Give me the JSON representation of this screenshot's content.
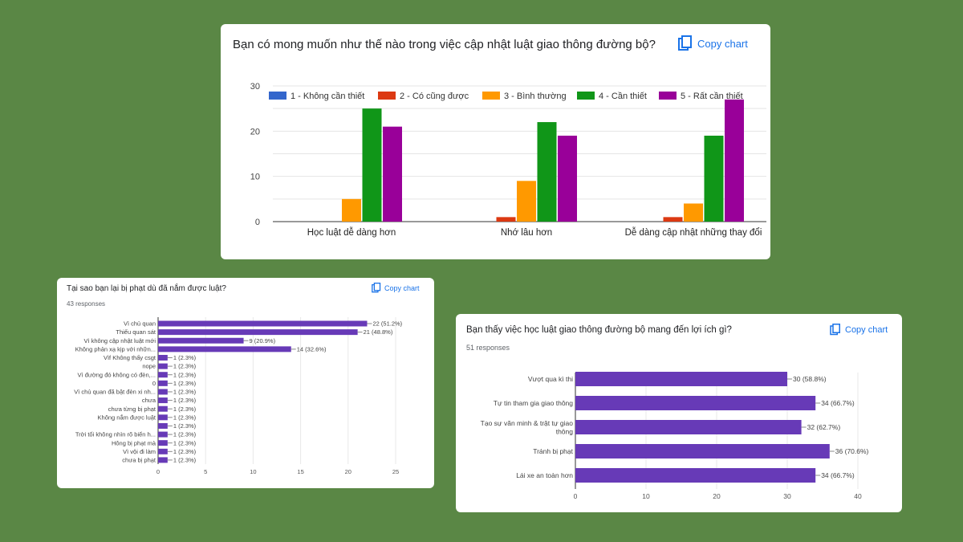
{
  "copy_label": "Copy chart",
  "charts": [
    {
      "title": "Bạn có mong muốn như thế nào trong việc cập nhật luật giao thông đường bộ?",
      "chart_data": {
        "type": "bar",
        "categories": [
          "Học luật dễ dàng hơn",
          "Nhớ lâu hơn",
          "Dễ dàng cập nhật những thay đổi"
        ],
        "series": [
          {
            "name": "1 - Không cần thiết",
            "color": "#3366cc",
            "values": [
              0,
              0,
              0
            ]
          },
          {
            "name": "2 - Có cũng được",
            "color": "#dc3912",
            "values": [
              0,
              1,
              1
            ]
          },
          {
            "name": "3 - Bình thường",
            "color": "#ff9900",
            "values": [
              5,
              9,
              4
            ]
          },
          {
            "name": "4 - Cần thiết",
            "color": "#109618",
            "values": [
              25,
              22,
              19
            ]
          },
          {
            "name": "5 - Rất cần thiết",
            "color": "#990099",
            "values": [
              21,
              19,
              27
            ]
          }
        ],
        "ylim": [
          0,
          30
        ],
        "yticks": [
          0,
          10,
          20,
          30
        ],
        "grid": true,
        "legend": "top"
      }
    },
    {
      "title": "Tại sao bạn lại bị phạt dù đã nắm được luật?",
      "responses": "43 responses",
      "chart_data": {
        "type": "bar",
        "orientation": "horizontal",
        "color": "#673ab7",
        "categories": [
          "Vì chủ quan",
          "Thiếu quan sát",
          "Vì không cập nhật luật mới",
          "Không phản xạ kịp với nhữn...",
          "Vìf Không thấy csgt",
          "nope",
          "Vì đường đó không có đèn,...",
          "0",
          "Vì chủ quan đã bật đèn xi nh...",
          "chưa",
          "chưa từng bị phạt",
          "Không nắm được luật",
          "",
          "Trời tối không nhìn rõ biển h...",
          "Hông bị phạt mà",
          "Vì vội đi làm",
          "chưa bị phạt"
        ],
        "values": [
          22,
          21,
          9,
          14,
          1,
          1,
          1,
          1,
          1,
          1,
          1,
          1,
          1,
          1,
          1,
          1,
          1
        ],
        "data_labels": [
          "22 (51.2%)",
          "21 (48.8%)",
          "9 (20.9%)",
          "14 (32.6%)",
          "1 (2.3%)",
          "1 (2.3%)",
          "1 (2.3%)",
          "1 (2.3%)",
          "1 (2.3%)",
          "1 (2.3%)",
          "1 (2.3%)",
          "1 (2.3%)",
          "1 (2.3%)",
          "1 (2.3%)",
          "1 (2.3%)",
          "1 (2.3%)",
          "1 (2.3%)"
        ],
        "xlim": [
          0,
          25
        ],
        "xticks": [
          0,
          5,
          10,
          15,
          20,
          25
        ],
        "grid": true
      }
    },
    {
      "title": "Bạn thấy việc học luật giao thông đường bộ mang đến lợi ích gì?",
      "responses": "51 responses",
      "chart_data": {
        "type": "bar",
        "orientation": "horizontal",
        "color": "#673ab7",
        "categories": [
          "Vượt qua kì thi",
          "Tự tin tham gia giao thông",
          "Tạo sự văn minh & trật tự giao thông",
          "Tránh bị phạt",
          "Lái xe an toàn hơn"
        ],
        "values": [
          30,
          34,
          32,
          36,
          34
        ],
        "data_labels": [
          "30 (58.8%)",
          "34 (66.7%)",
          "32 (62.7%)",
          "36 (70.6%)",
          "34 (66.7%)"
        ],
        "xlim": [
          0,
          40
        ],
        "xticks": [
          0,
          10,
          20,
          30,
          40
        ],
        "grid": true
      }
    }
  ]
}
